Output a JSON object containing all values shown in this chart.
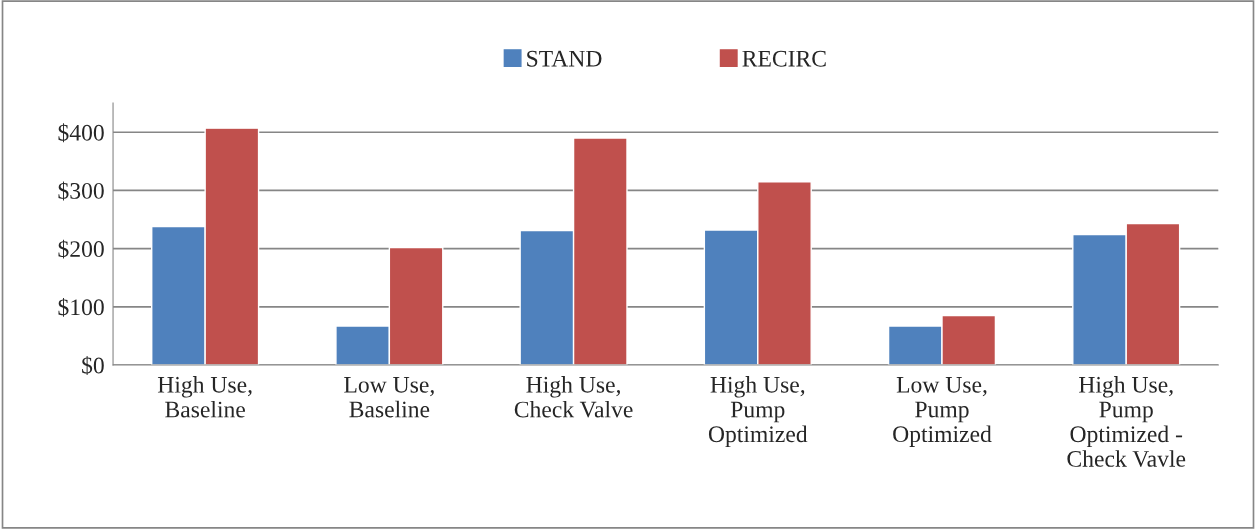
{
  "chart_data": {
    "type": "bar",
    "categories": [
      "High Use,\nBaseline",
      "Low Use,\nBaseline",
      "High Use,\nCheck Valve",
      "High Use,\nPump\nOptimized",
      "Low Use,\nPump\nOptimized",
      "High Use,\nPump\nOptimized -\nCheck Vavle"
    ],
    "series": [
      {
        "name": "STAND",
        "color": "#4f81bd",
        "values": [
          238,
          67,
          231,
          232,
          67,
          224
        ]
      },
      {
        "name": "RECIRC",
        "color": "#c0504d",
        "values": [
          407,
          202,
          390,
          315,
          85,
          243
        ]
      }
    ],
    "ylim": [
      0,
      450
    ],
    "yticks": [
      {
        "value": 0,
        "label": "$0"
      },
      {
        "value": 100,
        "label": "$100"
      },
      {
        "value": 200,
        "label": "$200"
      },
      {
        "value": 300,
        "label": "$300"
      },
      {
        "value": 400,
        "label": "$400"
      }
    ],
    "grid": "y",
    "legend": "top"
  }
}
